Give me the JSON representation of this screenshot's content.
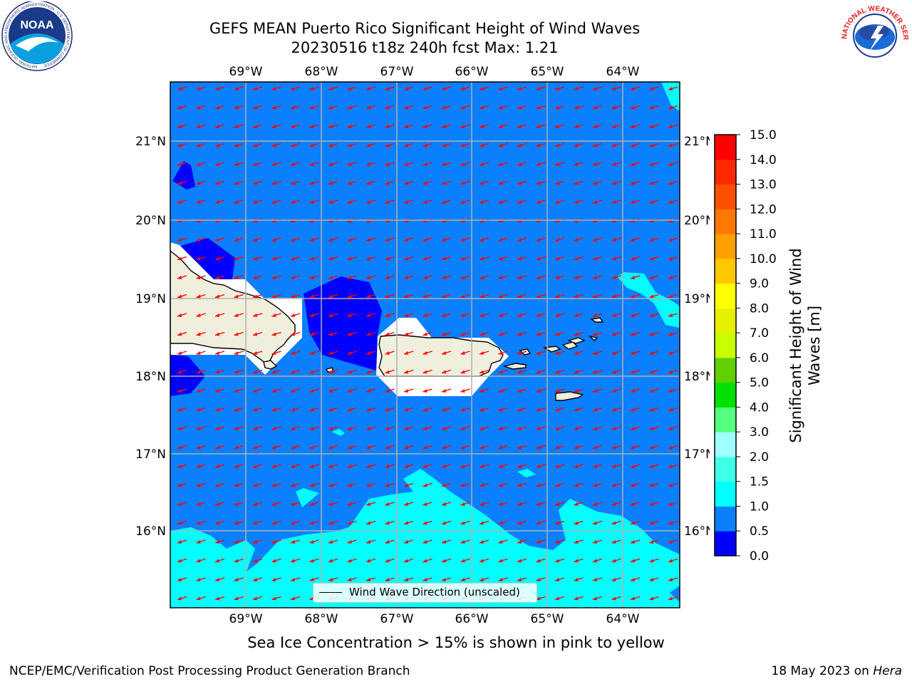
{
  "title": {
    "line1": "GEFS MEAN Puerto Rico Significant Height of Wind Waves",
    "line2": "20230516 t18z 240h fcst   Max: 1.21"
  },
  "logos": {
    "noaa": {
      "text": "NOAA",
      "ring_text": "NATIONAL OCEANIC AND ATMOSPHERIC ADMINISTRATION · U.S. DEPARTMENT OF COMMERCE"
    },
    "nws": {
      "ring_text": "NATIONAL WEATHER SERVICE"
    }
  },
  "map": {
    "lon_labels": [
      "69°W",
      "68°W",
      "67°W",
      "66°W",
      "65°W",
      "64°W"
    ],
    "lat_labels": [
      "21°N",
      "20°N",
      "19°N",
      "18°N",
      "17°N",
      "16°N"
    ],
    "wind_direction": "toward west-southwest",
    "colors": {
      "sea": "#0A80FF",
      "low": "#0000FF",
      "mid": "#00FFFF",
      "land": "#F0EEDC",
      "arrow": "#FF0000",
      "grid": "#B0B0B0"
    }
  },
  "legend": {
    "label": "Wind Wave Direction (unscaled)"
  },
  "colorbar": {
    "label": "Significant Height of Wind Waves [m]",
    "ticks": [
      "0.0",
      "0.5",
      "1.0",
      "1.5",
      "2.0",
      "3.0",
      "4.0",
      "5.0",
      "6.0",
      "7.0",
      "8.0",
      "9.0",
      "10.0",
      "11.0",
      "12.0",
      "13.0",
      "14.0",
      "15.0"
    ],
    "colors": [
      "#0000FF",
      "#0A80FF",
      "#00FFFF",
      "#40FFE8",
      "#A0FFFF",
      "#55FF80",
      "#00E000",
      "#60D000",
      "#C8FF00",
      "#E6F000",
      "#FFFF00",
      "#FFC800",
      "#FFA000",
      "#FF7800",
      "#FF5000",
      "#FF2800",
      "#FF0000"
    ]
  },
  "note": "Sea Ice Concentration > 15% is shown in pink to yellow",
  "footer": {
    "left": "NCEP/EMC/Verification Post Processing Product Generation Branch",
    "right_date": "18 May 2023 on",
    "right_host": "Hera"
  }
}
